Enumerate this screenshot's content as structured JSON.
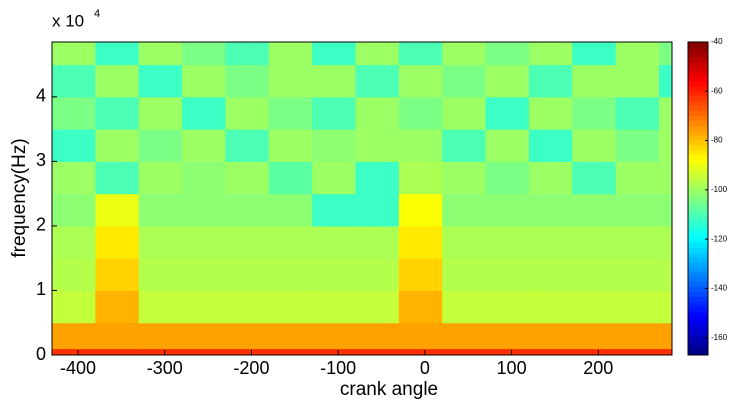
{
  "chart_data": {
    "type": "heatmap",
    "xlabel": "crank angle",
    "ylabel": "frequency(Hz)",
    "y_multiplier": {
      "base": "x 10",
      "exponent": "4"
    },
    "xlim": [
      -430,
      285
    ],
    "ylim": [
      0,
      48500
    ],
    "xticks": [
      -400,
      -300,
      -200,
      -100,
      0,
      100,
      200
    ],
    "yticks": [
      0,
      {
        "value": 10000,
        "label": "1"
      },
      {
        "value": 20000,
        "label": "2"
      },
      {
        "value": 30000,
        "label": "3"
      },
      {
        "value": 40000,
        "label": "4"
      }
    ],
    "x_edges": [
      -430,
      -380,
      -330,
      -280,
      -230,
      -180,
      -130,
      -80,
      -30,
      20,
      70,
      120,
      170,
      220,
      270,
      285
    ],
    "y_edges": [
      0,
      1000,
      5000,
      10000,
      15000,
      20000,
      25000,
      30000,
      35000,
      40000,
      45000,
      48500
    ],
    "z": [
      [
        -62,
        -62,
        -62,
        -62,
        -62,
        -62,
        -62,
        -62,
        -62,
        -62,
        -62,
        -62,
        -62,
        -62,
        -62
      ],
      [
        -76,
        -76,
        -76,
        -76,
        -76,
        -76,
        -76,
        -76,
        -76,
        -76,
        -76,
        -76,
        -76,
        -76,
        -76
      ],
      [
        -95,
        -78,
        -95,
        -95,
        -95,
        -95,
        -95,
        -95,
        -78,
        -95,
        -95,
        -95,
        -95,
        -95,
        -95
      ],
      [
        -97,
        -82,
        -97,
        -97,
        -97,
        -97,
        -97,
        -97,
        -82,
        -97,
        -97,
        -97,
        -97,
        -97,
        -97
      ],
      [
        -98,
        -85,
        -98,
        -98,
        -98,
        -98,
        -98,
        -98,
        -85,
        -98,
        -98,
        -98,
        -98,
        -98,
        -98
      ],
      [
        -102,
        -90,
        -102,
        -102,
        -102,
        -102,
        -112,
        -112,
        -88,
        -102,
        -102,
        -102,
        -102,
        -102,
        -102
      ],
      [
        -100,
        -110,
        -100,
        -102,
        -100,
        -108,
        -100,
        -112,
        -98,
        -100,
        -104,
        -100,
        -110,
        -100,
        -100
      ],
      [
        -112,
        -100,
        -104,
        -100,
        -110,
        -100,
        -102,
        -100,
        -100,
        -110,
        -100,
        -112,
        -100,
        -104,
        -100
      ],
      [
        -104,
        -110,
        -100,
        -112,
        -100,
        -104,
        -110,
        -100,
        -104,
        -100,
        -112,
        -100,
        -104,
        -110,
        -100
      ],
      [
        -110,
        -100,
        -112,
        -100,
        -104,
        -100,
        -100,
        -110,
        -100,
        -104,
        -100,
        -110,
        -100,
        -100,
        -112
      ],
      [
        -100,
        -112,
        -100,
        -104,
        -110,
        -100,
        -112,
        -100,
        -110,
        -100,
        -104,
        -100,
        -112,
        -100,
        -104
      ]
    ],
    "colormap": "jet",
    "zlim": [
      -167,
      -40
    ],
    "zticks": [
      -40,
      -60,
      -80,
      -100,
      -120,
      -140,
      -160
    ]
  }
}
